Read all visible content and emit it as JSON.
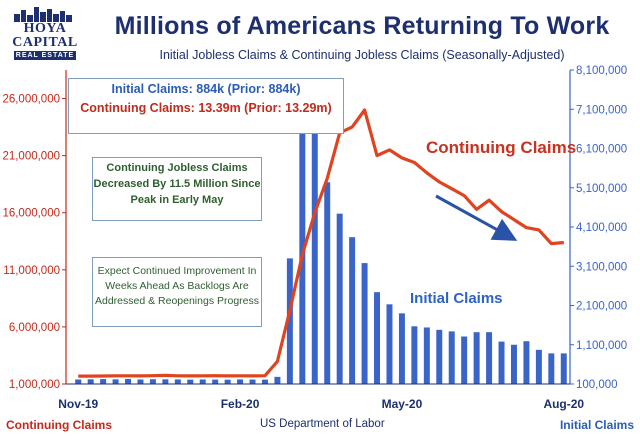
{
  "logo": {
    "name": "HOYA CAPITAL",
    "sub": "REAL ESTATE"
  },
  "colors": {
    "title": "#1d2f6f",
    "continuing": "#e0431f",
    "initial": "#3a64c8",
    "axis_left": "#c42a1c",
    "axis_right": "#3a64c8",
    "note_text": "#2f5f2f",
    "box_border": "#7f9fbf"
  },
  "chart_data": {
    "type": "bar",
    "title": "Millions of Americans Returning To Work",
    "subtitle": "Initial Jobless Claims & Continuing Jobless Claims (Seasonally-Adjusted)",
    "source": "US Department of Labor",
    "x_ticks": [
      "Nov-19",
      "Feb-20",
      "May-20",
      "Aug-20"
    ],
    "left_axis": {
      "label": "Continuing Claims",
      "range": [
        1000000,
        28500000
      ],
      "ticks": [
        "1,000,000",
        "6,000,000",
        "11,000,000",
        "16,000,000",
        "21,000,000",
        "26,000,000"
      ],
      "tick_values": [
        1000000,
        6000000,
        11000000,
        16000000,
        21000000,
        26000000
      ]
    },
    "right_axis": {
      "label": "Initial Claims",
      "range": [
        100000,
        8100000
      ],
      "ticks": [
        "100,000",
        "1,100,000",
        "2,100,000",
        "3,100,000",
        "4,100,000",
        "5,100,000",
        "6,100,000",
        "7,100,000",
        "8,100,000"
      ],
      "tick_values": [
        100000,
        1100000,
        2100000,
        3100000,
        4100000,
        5100000,
        6100000,
        7100000,
        8100000
      ]
    },
    "series": [
      {
        "name": "Initial Claims",
        "type": "bar",
        "axis": "right",
        "values": [
          215000,
          220000,
          225000,
          218000,
          230000,
          214000,
          222000,
          219000,
          216000,
          211000,
          215000,
          212000,
          210000,
          217000,
          213000,
          211000,
          282000,
          3300000,
          6860000,
          6620000,
          5240000,
          4440000,
          3840000,
          3180000,
          2440000,
          2130000,
          1900000,
          1570000,
          1540000,
          1480000,
          1440000,
          1310000,
          1420000,
          1420000,
          1180000,
          1100000,
          1190000,
          970000,
          880000,
          880000
        ]
      },
      {
        "name": "Continuing Claims",
        "type": "line",
        "axis": "left",
        "values": [
          1690000,
          1690000,
          1700000,
          1720000,
          1720000,
          1710000,
          1730000,
          1750000,
          1720000,
          1710000,
          1720000,
          1730000,
          1710000,
          1720000,
          1710000,
          1730000,
          2980000,
          7450000,
          12300000,
          16000000,
          19000000,
          23000000,
          23500000,
          25000000,
          21000000,
          21500000,
          20800000,
          20400000,
          19500000,
          18700000,
          18100000,
          17500000,
          16300000,
          17100000,
          16100000,
          15400000,
          14700000,
          14500000,
          13300000,
          13390000
        ]
      }
    ]
  },
  "labels": {
    "continuing_series": "Continuing Claims",
    "initial_series": "Initial Claims",
    "footer_left": "Continuing Claims",
    "footer_right": "Initial Claims"
  },
  "annotations": {
    "box1_line1": "Initial Claims: 884k (Prior: 884k)",
    "box1_line2": "Continuing Claims: 13.39m (Prior: 13.29m)",
    "box2": "Continuing Jobless Claims Decreased By 11.5 Million Since Peak in Early May",
    "box3": "Expect Continued Improvement In Weeks Ahead As Backlogs Are Addressed & Reopenings Progress"
  }
}
